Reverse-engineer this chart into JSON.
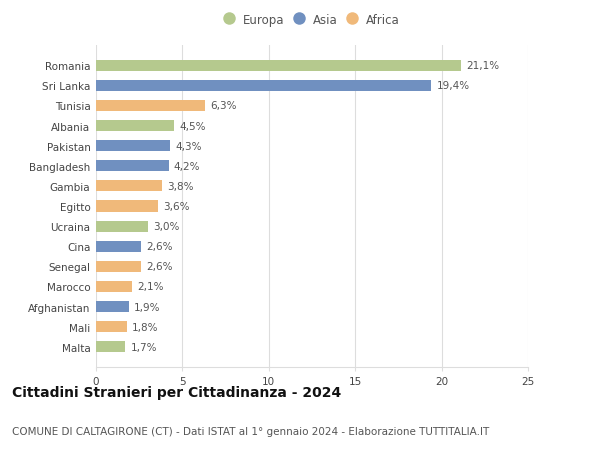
{
  "countries": [
    "Romania",
    "Sri Lanka",
    "Tunisia",
    "Albania",
    "Pakistan",
    "Bangladesh",
    "Gambia",
    "Egitto",
    "Ucraina",
    "Cina",
    "Senegal",
    "Marocco",
    "Afghanistan",
    "Mali",
    "Malta"
  ],
  "values": [
    21.1,
    19.4,
    6.3,
    4.5,
    4.3,
    4.2,
    3.8,
    3.6,
    3.0,
    2.6,
    2.6,
    2.1,
    1.9,
    1.8,
    1.7
  ],
  "labels": [
    "21,1%",
    "19,4%",
    "6,3%",
    "4,5%",
    "4,3%",
    "4,2%",
    "3,8%",
    "3,6%",
    "3,0%",
    "2,6%",
    "2,6%",
    "2,1%",
    "1,9%",
    "1,8%",
    "1,7%"
  ],
  "continents": [
    "Europa",
    "Asia",
    "Africa",
    "Europa",
    "Asia",
    "Asia",
    "Africa",
    "Africa",
    "Europa",
    "Asia",
    "Africa",
    "Africa",
    "Asia",
    "Africa",
    "Europa"
  ],
  "colors": {
    "Europa": "#b5c98e",
    "Asia": "#7090c0",
    "Africa": "#f0b97a"
  },
  "legend_entries": [
    "Europa",
    "Asia",
    "Africa"
  ],
  "xlim": [
    0,
    25
  ],
  "xticks": [
    0,
    5,
    10,
    15,
    20,
    25
  ],
  "title": "Cittadini Stranieri per Cittadinanza - 2024",
  "subtitle": "COMUNE DI CALTAGIRONE (CT) - Dati ISTAT al 1° gennaio 2024 - Elaborazione TUTTITALIA.IT",
  "bg_color": "#ffffff",
  "grid_color": "#dddddd",
  "bar_height": 0.55,
  "title_fontsize": 10,
  "subtitle_fontsize": 7.5,
  "label_fontsize": 7.5,
  "tick_fontsize": 7.5,
  "legend_fontsize": 8.5
}
